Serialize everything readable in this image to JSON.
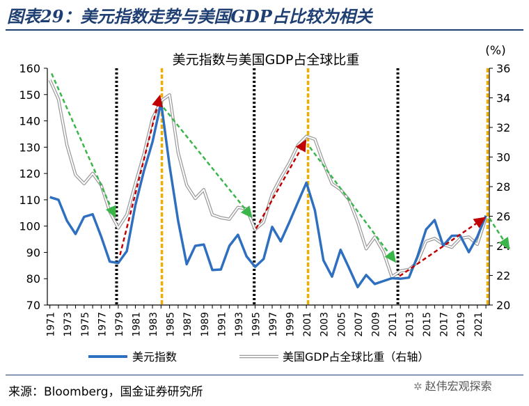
{
  "page_title": "图表29：美元指数走势与美国GDP占比较为相关",
  "source": "来源：Bloomberg，国金证券研究所",
  "watermark": "赵伟宏观探索",
  "watermark_icon": "wechat-icon",
  "chart_data": {
    "type": "line",
    "title": "美元指数与美国GDP占全球比重",
    "y2label": "(%)",
    "x": [
      1971,
      1972,
      1973,
      1974,
      1975,
      1976,
      1977,
      1978,
      1979,
      1980,
      1981,
      1982,
      1983,
      1984,
      1985,
      1986,
      1987,
      1988,
      1989,
      1990,
      1991,
      1992,
      1993,
      1994,
      1995,
      1996,
      1997,
      1998,
      1999,
      2000,
      2001,
      2002,
      2003,
      2004,
      2005,
      2006,
      2007,
      2008,
      2009,
      2010,
      2011,
      2012,
      2013,
      2014,
      2015,
      2016,
      2017,
      2018,
      2019,
      2020,
      2021,
      2022
    ],
    "x_tick_labels": [
      "1971",
      "1973",
      "1975",
      "1977",
      "1979",
      "1981",
      "1983",
      "1985",
      "1987",
      "1989",
      "1991",
      "1993",
      "1995",
      "1997",
      "1999",
      "2001",
      "2003",
      "2005",
      "2007",
      "2009",
      "2011",
      "2013",
      "2015",
      "2017",
      "2019",
      "2021"
    ],
    "ylim": [
      70,
      160
    ],
    "yticks": [
      70,
      80,
      90,
      100,
      110,
      120,
      130,
      140,
      150,
      160
    ],
    "y2lim": [
      20,
      36
    ],
    "y2ticks": [
      20,
      22,
      24,
      26,
      28,
      30,
      32,
      34,
      36
    ],
    "series": [
      {
        "name": "美元指数",
        "axis": "left",
        "color": "#2e6fc0",
        "values": [
          111,
          110,
          102,
          97,
          103.5,
          104.5,
          96,
          86.5,
          86,
          90.5,
          108,
          121,
          132,
          147,
          123,
          102,
          85.5,
          92.5,
          93,
          83.3,
          83.5,
          92.5,
          96.7,
          88.5,
          84.5,
          87.5,
          99.7,
          94.2,
          101.4,
          109,
          116.5,
          106,
          87,
          80.8,
          91,
          84,
          76.8,
          81.4,
          78,
          79.1,
          80.2,
          80,
          80.4,
          88.5,
          98.7,
          102.3,
          92.6,
          96.3,
          96.4,
          90.1,
          96,
          104
        ]
      },
      {
        "name": "美国GDP占全球比重（右轴）",
        "axis": "right",
        "color": "#9a9a9a",
        "values": [
          35.2,
          33.9,
          30.8,
          28.8,
          28.2,
          28.9,
          28.1,
          26.3,
          25.2,
          26.1,
          28.2,
          30.2,
          32.6,
          33.8,
          34.2,
          30.3,
          28.1,
          27.2,
          27.8,
          26.1,
          25.9,
          25.8,
          26.6,
          26.5,
          25.1,
          25.6,
          27.5,
          28.6,
          29.6,
          30.8,
          31.4,
          31.2,
          29.6,
          28.2,
          27.8,
          27.1,
          25.6,
          23.8,
          24.6,
          23.6,
          21.9,
          22.3,
          22.4,
          22.9,
          24.3,
          24.5,
          24.1,
          23.9,
          24.5,
          24.6,
          24.1,
          25.9
        ]
      }
    ],
    "vertical_markers": [
      {
        "x": 1978.8,
        "color": "#000000",
        "style": "dotted"
      },
      {
        "x": 1984.1,
        "color": "#f0ad00",
        "style": "dashed"
      },
      {
        "x": 1994.9,
        "color": "#000000",
        "style": "dotted"
      },
      {
        "x": 2001.2,
        "color": "#f0ad00",
        "style": "dashed"
      },
      {
        "x": 2011.7,
        "color": "#000000",
        "style": "dotted"
      },
      {
        "x": 2022.2,
        "color": "#f0ad00",
        "style": "dashed"
      }
    ],
    "trend_arrows": [
      {
        "x1": 1971.2,
        "y1": 158,
        "x2": 1978.7,
        "y2": 103,
        "color": "#3ab54a",
        "axis": "left"
      },
      {
        "x1": 1979.2,
        "y1": 89,
        "x2": 1983.9,
        "y2": 150,
        "color": "#c00000",
        "axis": "left"
      },
      {
        "x1": 1984.3,
        "y1": 145,
        "x2": 1994.7,
        "y2": 103,
        "color": "#3ab54a",
        "axis": "left"
      },
      {
        "x1": 1995.1,
        "y1": 99,
        "x2": 2001.0,
        "y2": 133,
        "color": "#c00000",
        "axis": "left"
      },
      {
        "x1": 2001.4,
        "y1": 130,
        "x2": 2011.5,
        "y2": 86,
        "color": "#3ab54a",
        "axis": "left"
      },
      {
        "x1": 2011.9,
        "y1": 81,
        "x2": 2022.0,
        "y2": 103.5,
        "color": "#c00000",
        "axis": "left"
      },
      {
        "x1": 2022.4,
        "y1": 103,
        "x2": 2024.8,
        "y2": 91,
        "color": "#3ab54a",
        "axis": "left"
      }
    ],
    "legend_placement": "bottom",
    "grid": false
  }
}
